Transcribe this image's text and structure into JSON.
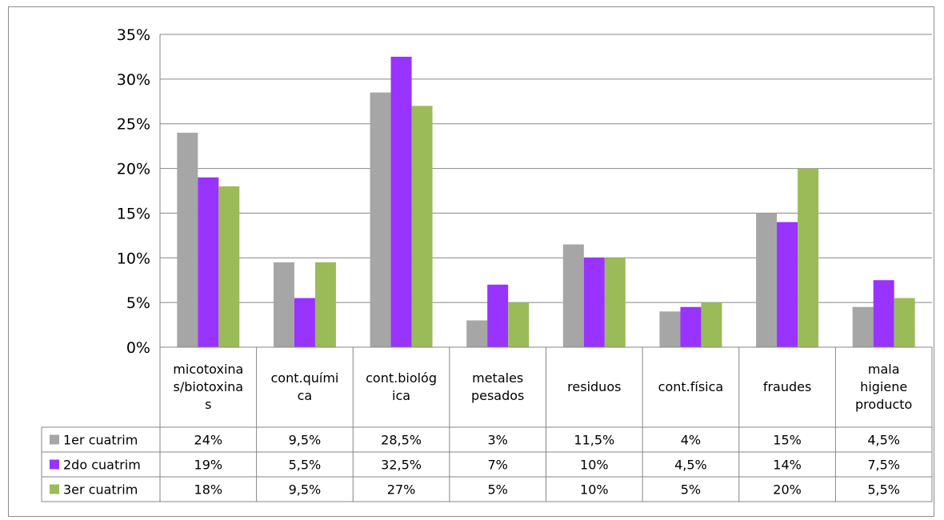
{
  "chart_data": {
    "type": "bar",
    "categories": [
      [
        "micotoxina",
        "s/biotoxina",
        "s"
      ],
      [
        "cont.quími",
        "ca"
      ],
      [
        "cont.biológ",
        "ica"
      ],
      [
        "metales",
        "pesados"
      ],
      [
        "residuos"
      ],
      [
        "cont.física"
      ],
      [
        "fraudes"
      ],
      [
        "mala",
        "higiene",
        "producto"
      ]
    ],
    "series": [
      {
        "name": "1er cuatrim",
        "color": "#a6a6a6",
        "values": [
          24,
          9.5,
          28.5,
          3,
          11.5,
          4,
          15,
          4.5
        ],
        "labels": [
          "24%",
          "9,5%",
          "28,5%",
          "3%",
          "11,5%",
          "4%",
          "15%",
          "4,5%"
        ]
      },
      {
        "name": "2do cuatrim",
        "color": "#9933ff",
        "values": [
          19,
          5.5,
          32.5,
          7,
          10,
          4.5,
          14,
          7.5
        ],
        "labels": [
          "19%",
          "5,5%",
          "32,5%",
          "7%",
          "10%",
          "4,5%",
          "14%",
          "7,5%"
        ]
      },
      {
        "name": "3er cuatrim",
        "color": "#9bbb59",
        "values": [
          18,
          9.5,
          27,
          5,
          10,
          5,
          20,
          5.5
        ],
        "labels": [
          "18%",
          "9,5%",
          "27%",
          "5%",
          "10%",
          "5%",
          "20%",
          "5,5%"
        ]
      }
    ],
    "ylim": [
      0,
      35
    ],
    "yticks": [
      0,
      5,
      10,
      15,
      20,
      25,
      30,
      35
    ],
    "ytick_labels": [
      "0%",
      "5%",
      "10%",
      "15%",
      "20%",
      "25%",
      "30%",
      "35%"
    ],
    "grid": true,
    "legend": "data-table-left"
  }
}
